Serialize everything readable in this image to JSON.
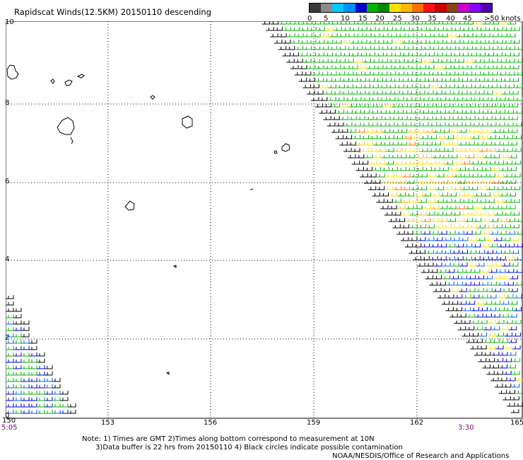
{
  "title": "Rapidscat Winds(12.5KM) 20150110 descending",
  "legend": {
    "colors": [
      "#3a3a3a",
      "#8a8a8a",
      "#00c8ff",
      "#0090ff",
      "#0000cc",
      "#00b400",
      "#008800",
      "#ffe000",
      "#ffb800",
      "#ff7000",
      "#ff1010",
      "#cc0000",
      "#8b4513",
      "#cc00cc",
      "#8800ff",
      "#5000b0"
    ],
    "labels": [
      "0",
      "5",
      "10",
      "15",
      "20",
      "25",
      "30",
      "35",
      "40",
      "45",
      ">50 knots"
    ]
  },
  "x_axis": {
    "labels": [
      "150",
      "153",
      "156",
      "159",
      "162",
      "165"
    ]
  },
  "y_axis": {
    "labels": [
      "10",
      "8",
      "6",
      "4",
      "2",
      "0"
    ]
  },
  "times": {
    "left": "5:05",
    "right": "3:30"
  },
  "notes": [
    "Note: 1) Times are GMT 2)Times along bottom correspond to measurement at 10N",
    "      3)Data buffer is 22 hrs from 20150110 4) Black circles indicate possible contamination"
  ],
  "credit": "NOAA/NESDIS/Office of Research and Applications",
  "map_data": {
    "lon_range": [
      150,
      165
    ],
    "lat_range": [
      0,
      10
    ],
    "wind_colors": [
      "#000000",
      "#0000cc",
      "#0060ff",
      "#00b400",
      "#00a000",
      "#ffe000",
      "#ffb800",
      "#ff7000"
    ]
  }
}
